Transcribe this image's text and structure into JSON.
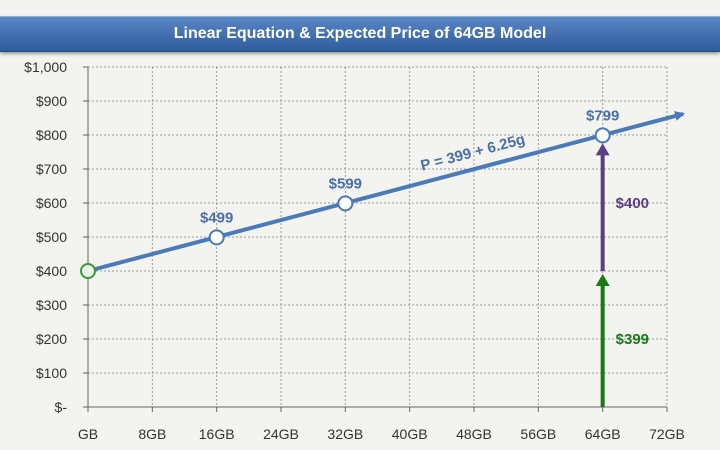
{
  "chart_data": {
    "type": "line",
    "title": "Linear Equation & Expected Price of 64GB Model",
    "xlabel": "",
    "ylabel": "",
    "x_ticks": [
      {
        "v": 0,
        "label": "GB"
      },
      {
        "v": 8,
        "label": "8GB"
      },
      {
        "v": 16,
        "label": "16GB"
      },
      {
        "v": 24,
        "label": "24GB"
      },
      {
        "v": 32,
        "label": "32GB"
      },
      {
        "v": 40,
        "label": "40GB"
      },
      {
        "v": 48,
        "label": "48GB"
      },
      {
        "v": 56,
        "label": "56GB"
      },
      {
        "v": 64,
        "label": "64GB"
      },
      {
        "v": 72,
        "label": "72GB"
      }
    ],
    "y_ticks": [
      {
        "v": 0,
        "label": "$-"
      },
      {
        "v": 100,
        "label": "$100"
      },
      {
        "v": 200,
        "label": "$200"
      },
      {
        "v": 300,
        "label": "$300"
      },
      {
        "v": 400,
        "label": "$400"
      },
      {
        "v": 500,
        "label": "$500"
      },
      {
        "v": 600,
        "label": "$600"
      },
      {
        "v": 700,
        "label": "$700"
      },
      {
        "v": 800,
        "label": "$800"
      },
      {
        "v": 900,
        "label": "$900"
      },
      {
        "v": 1000,
        "label": "$1,000"
      }
    ],
    "xlim": [
      0,
      72
    ],
    "ylim": [
      0,
      1000
    ],
    "grid": true,
    "line": {
      "x": [
        0,
        74
      ],
      "y": [
        400,
        862
      ]
    },
    "equation": "P = 399 + 6.25g",
    "points": [
      {
        "x": 0,
        "y": 400,
        "label": ""
      },
      {
        "x": 16,
        "y": 499,
        "label": "$499"
      },
      {
        "x": 32,
        "y": 599,
        "label": "$599"
      },
      {
        "x": 64,
        "y": 799,
        "label": "$799"
      }
    ],
    "arrows": [
      {
        "x": 64,
        "from": 0,
        "to": 400,
        "label": "$399",
        "color": "#1a7a1a"
      },
      {
        "x": 64,
        "from": 400,
        "to": 799,
        "label": "$400",
        "color": "#5a3f86"
      }
    ],
    "colors": {
      "line": "#4a7ab8",
      "grid": "#999999",
      "axis": "#666666",
      "label": "#4a6fa8",
      "origin": "#3a9a3a"
    }
  }
}
